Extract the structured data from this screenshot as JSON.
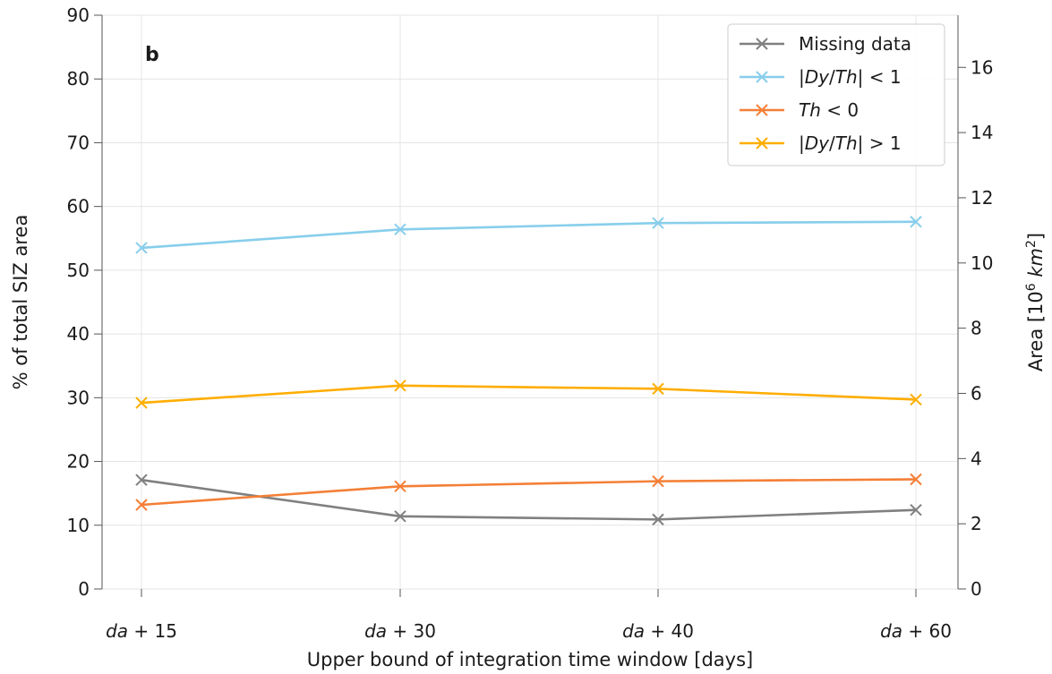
{
  "chart_data": {
    "type": "line",
    "panel_label": "b",
    "categories": [
      "da + 15",
      "da + 30",
      "da + 40",
      "da + 60"
    ],
    "category_labels": [
      {
        "italic": "da",
        "rest": " + 15"
      },
      {
        "italic": "da",
        "rest": " + 30"
      },
      {
        "italic": "da",
        "rest": " + 40"
      },
      {
        "italic": "da",
        "rest": " + 60"
      }
    ],
    "xlabel": "Upper bound of integration time window [days]",
    "ylabel": "% of total SIZ area",
    "ylabel_right": "Area [10⁶ km²]",
    "ylabel_right_parts": {
      "prefix": "Area [10",
      "sup1": "6",
      "mid": " ",
      "unit": "km",
      "sup2": "2",
      "suffix": "]"
    },
    "ylim": [
      0,
      90
    ],
    "yticks": [
      0,
      10,
      20,
      30,
      40,
      50,
      60,
      70,
      80,
      90
    ],
    "ylim_right": [
      0,
      17.6
    ],
    "yticks_right": [
      0,
      2,
      4,
      6,
      8,
      10,
      12,
      14,
      16
    ],
    "grid": true,
    "legend_position": "top-right",
    "series": [
      {
        "name": "Missing data",
        "legend_parts": [
          {
            "t": "Missing data",
            "i": false
          }
        ],
        "color": "#808080",
        "values": [
          17.1,
          11.4,
          10.9,
          12.4
        ]
      },
      {
        "name": "|Dy/Th| < 1",
        "legend_parts": [
          {
            "t": "|",
            "i": false
          },
          {
            "t": "Dy",
            "i": true
          },
          {
            "t": "/",
            "i": false
          },
          {
            "t": "Th",
            "i": true
          },
          {
            "t": "| < 1",
            "i": false
          }
        ],
        "color": "#87ceeb",
        "values": [
          53.5,
          56.4,
          57.4,
          57.6
        ]
      },
      {
        "name": "Th < 0",
        "legend_parts": [
          {
            "t": "Th",
            "i": true
          },
          {
            "t": " < 0",
            "i": false
          }
        ],
        "color": "#f47f36",
        "values": [
          13.2,
          16.1,
          16.9,
          17.2
        ]
      },
      {
        "name": "|Dy/Th| > 1",
        "legend_parts": [
          {
            "t": "|",
            "i": false
          },
          {
            "t": "Dy",
            "i": true
          },
          {
            "t": "/",
            "i": false
          },
          {
            "t": "Th",
            "i": true
          },
          {
            "t": "| > 1",
            "i": false
          }
        ],
        "color": "#ffad00",
        "values": [
          29.2,
          31.9,
          31.4,
          29.7
        ]
      }
    ]
  }
}
